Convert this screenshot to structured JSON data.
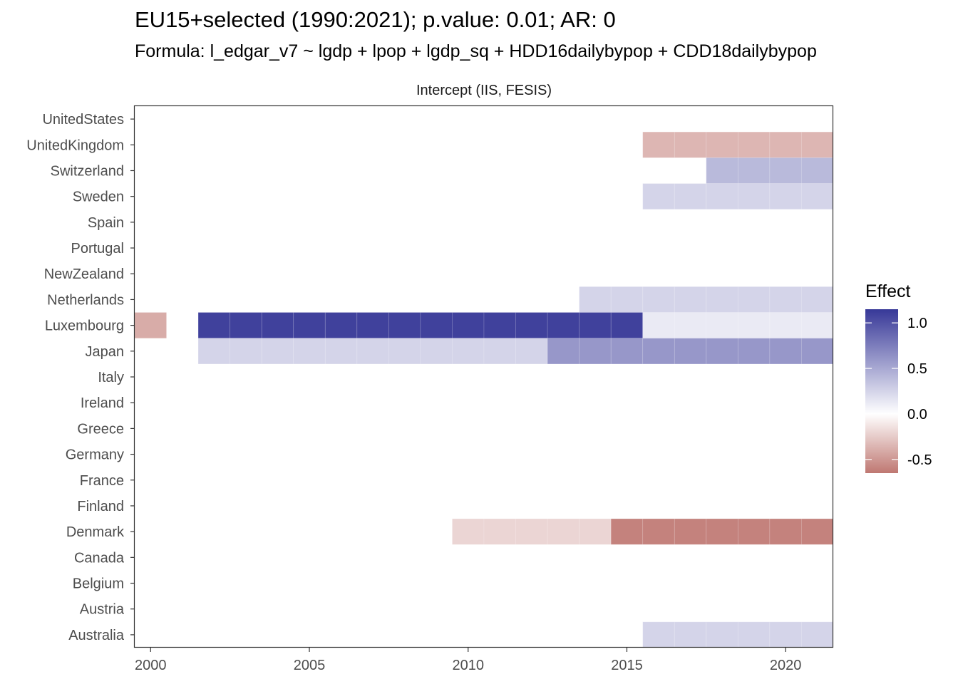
{
  "chart_data": {
    "type": "heatmap",
    "title": "EU15+selected (1990:2021); p.value: 0.01; AR: 0",
    "subtitle": "Formula: l_edgar_v7 ~ lgdp + lpop + lgdp_sq + HDD16dailybypop + CDD18dailybypop",
    "facet_label": "Intercept (IIS, FESIS)",
    "xlabel": "",
    "ylabel": "",
    "xlim": [
      1999.5,
      2021.5
    ],
    "x_ticks": [
      2000,
      2005,
      2010,
      2015,
      2020
    ],
    "countries": [
      "UnitedStates",
      "UnitedKingdom",
      "Switzerland",
      "Sweden",
      "Spain",
      "Portugal",
      "NewZealand",
      "Netherlands",
      "Luxembourg",
      "Japan",
      "Italy",
      "Ireland",
      "Greece",
      "Germany",
      "France",
      "Finland",
      "Denmark",
      "Canada",
      "Belgium",
      "Austria",
      "Australia"
    ],
    "legend": {
      "title": "Effect",
      "position": "right",
      "range": [
        -0.65,
        1.15
      ],
      "ticks": [
        1.0,
        0.5,
        0.0,
        -0.5
      ],
      "tick_labels": [
        "1.0",
        "0.5",
        "0.0",
        "-0.5"
      ],
      "low_color": "#bf7872",
      "mid_color": "#ffffff",
      "high_color": "#373898"
    },
    "segments": [
      {
        "country": "UnitedKingdom",
        "from": 2016,
        "to": 2021,
        "value": -0.35
      },
      {
        "country": "Switzerland",
        "from": 2018,
        "to": 2021,
        "value": 0.4
      },
      {
        "country": "Sweden",
        "from": 2016,
        "to": 2021,
        "value": 0.25
      },
      {
        "country": "Netherlands",
        "from": 2014,
        "to": 2021,
        "value": 0.25
      },
      {
        "country": "Luxembourg",
        "from": 2000,
        "to": 2000,
        "value": -0.4
      },
      {
        "country": "Luxembourg",
        "from": 2002,
        "to": 2015,
        "value": 1.1
      },
      {
        "country": "Luxembourg",
        "from": 2016,
        "to": 2021,
        "value": 0.12
      },
      {
        "country": "Japan",
        "from": 2002,
        "to": 2012,
        "value": 0.25
      },
      {
        "country": "Japan",
        "from": 2013,
        "to": 2021,
        "value": 0.6
      },
      {
        "country": "Denmark",
        "from": 2010,
        "to": 2014,
        "value": -0.2
      },
      {
        "country": "Denmark",
        "from": 2015,
        "to": 2021,
        "value": -0.6
      },
      {
        "country": "Australia",
        "from": 2016,
        "to": 2021,
        "value": 0.25
      }
    ]
  }
}
